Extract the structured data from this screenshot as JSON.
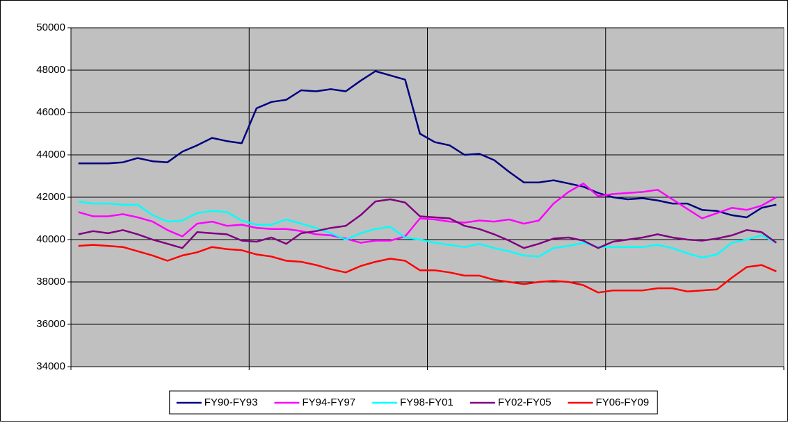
{
  "chart_data": {
    "type": "line",
    "categories": [
      null,
      null,
      null,
      null,
      null,
      null,
      null,
      null,
      null,
      null,
      null,
      null,
      null,
      null,
      null,
      null,
      null,
      null,
      null,
      null,
      null,
      null,
      null,
      null,
      null,
      null,
      null,
      null,
      null,
      null,
      null,
      null,
      null,
      null,
      null,
      null,
      null,
      null,
      null,
      null,
      null,
      null,
      null,
      null,
      null,
      null,
      null,
      null
    ],
    "series": [
      {
        "name": "FY90-FY93",
        "color": "#000080",
        "values": [
          43600,
          43600,
          43600,
          43650,
          43850,
          43700,
          43650,
          44150,
          44450,
          44800,
          44650,
          44550,
          46200,
          46500,
          46600,
          47050,
          47000,
          47100,
          47000,
          47500,
          47950,
          47750,
          47550,
          45000,
          44600,
          44450,
          44000,
          44050,
          43750,
          43200,
          42700,
          42700,
          42800,
          42650,
          42500,
          42200,
          42000,
          41900,
          41950,
          41850,
          41700,
          41700,
          41400,
          41350,
          41150,
          41050,
          41500,
          41650
        ]
      },
      {
        "name": "FY94-FY97",
        "color": "#ff00ff",
        "values": [
          41300,
          41100,
          41100,
          41200,
          41050,
          40850,
          40450,
          40150,
          40750,
          40850,
          40650,
          40700,
          40550,
          40500,
          40500,
          40400,
          40250,
          40200,
          40050,
          39850,
          39950,
          39950,
          40150,
          41000,
          40950,
          40850,
          40800,
          40900,
          40850,
          40950,
          40750,
          40900,
          41700,
          42250,
          42650,
          42050,
          42150,
          42200,
          42250,
          42350,
          41900,
          41450,
          41000,
          41250,
          41500,
          41400,
          41600,
          42000
        ]
      },
      {
        "name": "FY98-FY01",
        "color": "#00ffff",
        "values": [
          41800,
          41700,
          41700,
          41650,
          41650,
          41150,
          40850,
          40900,
          41250,
          41350,
          41300,
          40900,
          40700,
          40700,
          40950,
          40750,
          40550,
          40300,
          40000,
          40300,
          40500,
          40600,
          40100,
          40000,
          39850,
          39750,
          39650,
          39800,
          39600,
          39450,
          39250,
          39200,
          39600,
          39700,
          39850,
          39650,
          39650,
          39650,
          39650,
          39750,
          39600,
          39350,
          39150,
          39300,
          39850,
          40000,
          40200,
          39850
        ]
      },
      {
        "name": "FY02-FY05",
        "color": "#800080",
        "values": [
          40250,
          40400,
          40300,
          40450,
          40250,
          40000,
          39800,
          39600,
          40350,
          40300,
          40250,
          39950,
          39900,
          40100,
          39800,
          40300,
          40400,
          40550,
          40650,
          41150,
          41800,
          41900,
          41750,
          41100,
          41050,
          41000,
          40650,
          40500,
          40250,
          39950,
          39600,
          39800,
          40050,
          40100,
          39950,
          39600,
          39900,
          40000,
          40100,
          40250,
          40100,
          40000,
          39950,
          40050,
          40200,
          40450,
          40350,
          39850
        ]
      },
      {
        "name": "FY06-FY09",
        "color": "#ff0000",
        "values": [
          39700,
          39750,
          39700,
          39650,
          39450,
          39250,
          39000,
          39250,
          39400,
          39650,
          39550,
          39500,
          39300,
          39200,
          39000,
          38950,
          38800,
          38600,
          38450,
          38750,
          38950,
          39100,
          39000,
          38550,
          38550,
          38450,
          38300,
          38300,
          38100,
          38000,
          37900,
          38000,
          38050,
          38000,
          37850,
          37500,
          37600,
          37600,
          37600,
          37700,
          37700,
          37550,
          37600,
          37650,
          38200,
          38700,
          38800,
          38500
        ]
      }
    ],
    "ylim": [
      34000,
      50000
    ],
    "yticks": [
      34000,
      36000,
      38000,
      40000,
      42000,
      44000,
      46000,
      48000,
      50000
    ],
    "grid": true,
    "legend": "bottom",
    "plot_background": "#c0c0c0"
  }
}
